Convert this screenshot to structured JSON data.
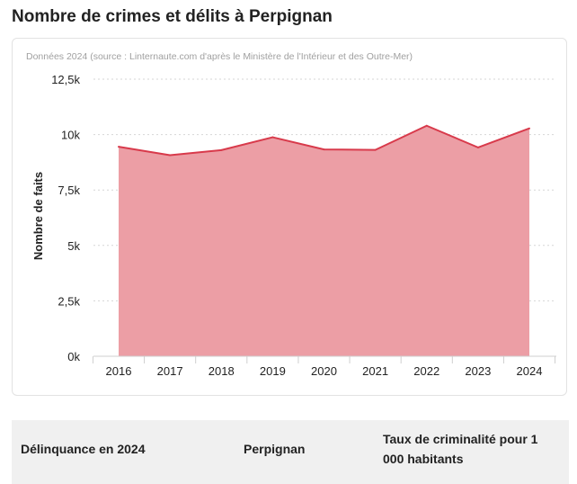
{
  "page": {
    "title": "Nombre de crimes et délits à Perpignan"
  },
  "chart_data": {
    "type": "area",
    "source": "Données 2024 (source : Linternaute.com d'après le Ministère de l'Intérieur et des Outre-Mer)",
    "ylabel": "Nombre de faits",
    "xlabel": "",
    "categories": [
      "2016",
      "2017",
      "2018",
      "2019",
      "2020",
      "2021",
      "2022",
      "2023",
      "2024"
    ],
    "values": [
      9450,
      9070,
      9300,
      9880,
      9330,
      9310,
      10400,
      9420,
      10280
    ],
    "ylim": [
      0,
      12500
    ],
    "yticks": [
      0,
      2500,
      5000,
      7500,
      10000,
      12500
    ],
    "ytick_labels": [
      "0k",
      "2,5k",
      "5k",
      "7,5k",
      "10k",
      "12,5k"
    ],
    "grid": true,
    "line_color": "#d83a4b",
    "fill_color": "#ec9ea5"
  },
  "table": {
    "headers": [
      "Délinquance en 2024",
      "Perpignan",
      "Taux de criminalité pour 1 000 habitants"
    ]
  }
}
